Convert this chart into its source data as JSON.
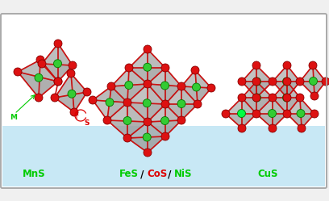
{
  "bg_color": "#f0f0f0",
  "panel_bg_top": "#ffffff",
  "panel_bg_bottom": "#c8e8f5",
  "panel_border": "#aaaaaa",
  "fig_width": 4.08,
  "fig_height": 2.49,
  "dpi": 100,
  "metal_color": "#33cc33",
  "metal_edge": "#007700",
  "sulfur_color": "#dd1111",
  "sulfur_edge": "#880000",
  "poly_face": "#999999",
  "poly_edge": "#555555",
  "poly_alpha": 0.55,
  "atom_r": 5.0,
  "bond_color": "#cc1111",
  "bond_lw": 1.2,
  "label_mns": "MnS",
  "label_fes": "FeS",
  "label_cos": "CoS",
  "label_nis": "NiS",
  "label_cus": "CuS",
  "label_color_green": "#00cc00",
  "label_color_red": "#dd0000",
  "label_sep": " / ",
  "ann_M": "M",
  "ann_S": "S",
  "ann_color_M": "#00cc00",
  "ann_color_S": "#dd0000"
}
